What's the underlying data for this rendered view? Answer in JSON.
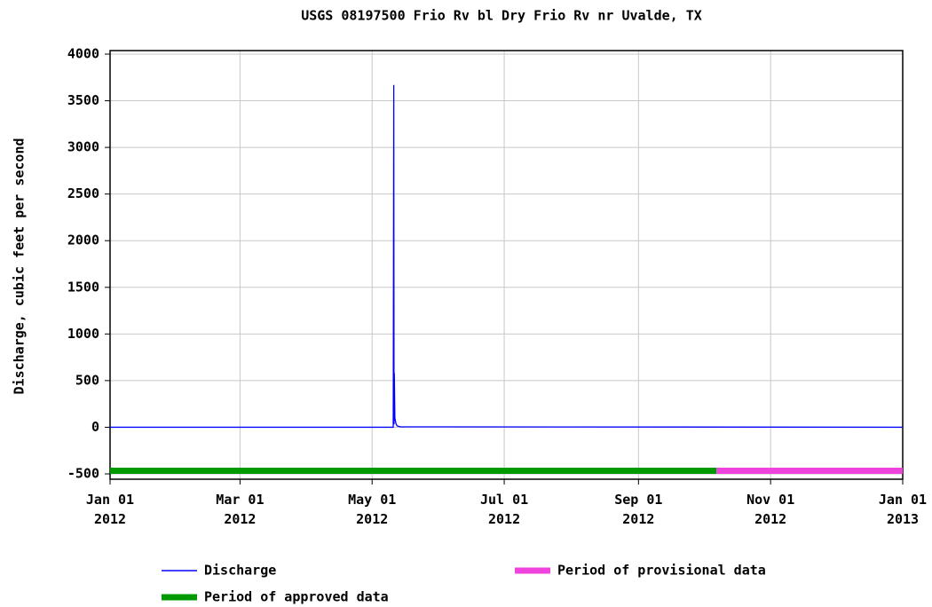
{
  "chart_data": {
    "type": "line",
    "title": "USGS 08197500 Frio Rv bl Dry Frio Rv nr Uvalde, TX",
    "y_label": "Discharge, cubic feet per second",
    "x": [
      "2012-01-01",
      "2012-05-10T18:00",
      "2012-05-11T00:00",
      "2012-05-11T03:00",
      "2012-05-11T06:00",
      "2012-05-11T12:00",
      "2012-05-12T00:00",
      "2012-05-12T12:00",
      "2012-05-14T00:00",
      "2013-01-01"
    ],
    "series": [
      {
        "name": "Discharge",
        "color": "#0000ff",
        "values": [
          0,
          0,
          3670,
          30,
          580,
          100,
          40,
          15,
          5,
          0
        ]
      }
    ],
    "periods": [
      {
        "name": "Period of approved data",
        "color": "#009900",
        "start": "2012-01-01",
        "end": "2012-10-07"
      },
      {
        "name": "Period of provisional data",
        "color": "#ee44dd",
        "start": "2012-10-07",
        "end": "2013-01-01"
      }
    ],
    "xlim": [
      "2012-01-01",
      "2013-01-01"
    ],
    "xticks": [
      {
        "value": "2012-01-01",
        "label": "Jan 01\n2012"
      },
      {
        "value": "2012-03-01",
        "label": "Mar 01\n2012"
      },
      {
        "value": "2012-05-01",
        "label": "May 01\n2012"
      },
      {
        "value": "2012-07-01",
        "label": "Jul 01\n2012"
      },
      {
        "value": "2012-09-01",
        "label": "Sep 01\n2012"
      },
      {
        "value": "2012-11-01",
        "label": "Nov 01\n2012"
      },
      {
        "value": "2013-01-01",
        "label": "Jan 01\n2013"
      }
    ],
    "ylim": [
      -500,
      4000
    ],
    "yticks": [
      -500,
      0,
      500,
      1000,
      1500,
      2000,
      2500,
      3000,
      3500,
      4000
    ],
    "grid": true
  }
}
